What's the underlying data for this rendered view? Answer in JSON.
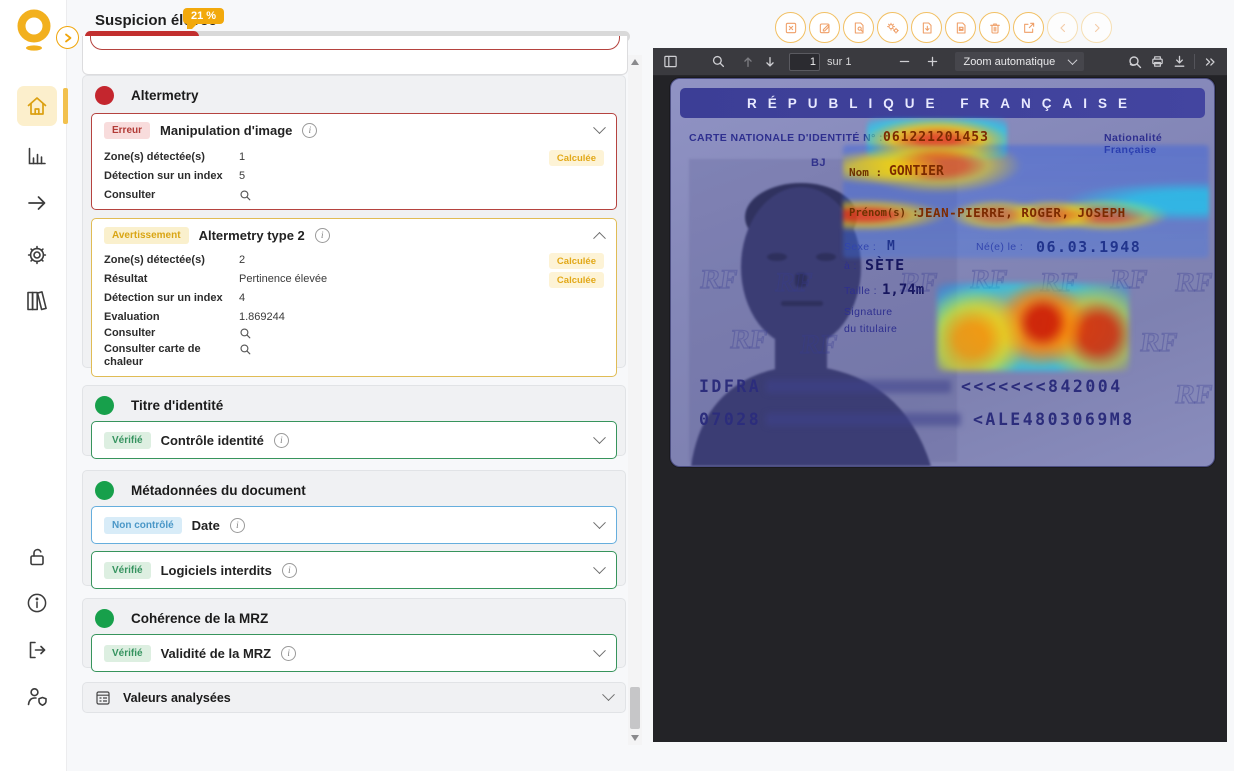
{
  "header": {
    "title": "Suspicion élevée",
    "score_badge": "21 %",
    "progress_percent": 21
  },
  "sidebar": {
    "items": [
      {
        "icon": "home"
      },
      {
        "icon": "bar-chart"
      },
      {
        "icon": "arrow-right"
      },
      {
        "icon": "settings-gear"
      },
      {
        "icon": "library-books"
      },
      {
        "icon": "lock-open"
      },
      {
        "icon": "info-circle"
      },
      {
        "icon": "logout"
      },
      {
        "icon": "user-shield"
      }
    ]
  },
  "top_toolbar": {
    "buttons": [
      {
        "icon": "box-x"
      },
      {
        "icon": "edit-note"
      },
      {
        "icon": "document-preview"
      },
      {
        "icon": "gears"
      },
      {
        "icon": "document-download"
      },
      {
        "icon": "document-pdf"
      },
      {
        "icon": "trash"
      },
      {
        "icon": "open-external"
      },
      {
        "icon": "chevron-left"
      },
      {
        "icon": "chevron-right"
      }
    ]
  },
  "analysis": {
    "groups": [
      {
        "title": "Altermetry",
        "status": "error",
        "checks": [
          {
            "badge": "Erreur",
            "title": "Manipulation d'image",
            "rows": [
              {
                "label": "Zone(s) détectée(s)",
                "value": "1",
                "tag": "Calculée"
              },
              {
                "label": "Détection sur un index",
                "value": "5"
              },
              {
                "label": "Consulter",
                "icon": "magnifier"
              }
            ]
          },
          {
            "badge": "Avertissement",
            "title": "Altermetry type 2",
            "rows": [
              {
                "label": "Zone(s) détectée(s)",
                "value": "2",
                "tag": "Calculée"
              },
              {
                "label": "Résultat",
                "value": "Pertinence élevée",
                "tag": "Calculée"
              },
              {
                "label": "Détection sur un index",
                "value": "4"
              },
              {
                "label": "Evaluation",
                "value": "1.869244"
              },
              {
                "label": "Consulter",
                "icon": "magnifier"
              },
              {
                "label": "Consulter carte de chaleur",
                "icon": "magnifier"
              }
            ]
          }
        ]
      },
      {
        "title": "Titre d'identité",
        "status": "ok",
        "checks": [
          {
            "badge": "Vérifié",
            "title": "Contrôle identité"
          }
        ]
      },
      {
        "title": "Métadonnées du document",
        "status": "ok",
        "checks": [
          {
            "badge": "Non contrôlé",
            "title": "Date"
          },
          {
            "badge": "Vérifié",
            "title": "Logiciels interdits"
          }
        ]
      },
      {
        "title": "Cohérence de la MRZ",
        "status": "ok",
        "checks": [
          {
            "badge": "Vérifié",
            "title": "Validité de la MRZ"
          }
        ]
      }
    ],
    "values_row_label": "Valeurs analysées"
  },
  "pdf_viewer": {
    "page_input": "1",
    "page_count": "sur 1",
    "zoom_select": "Zoom automatique"
  },
  "id_card": {
    "header": "RÉPUBLIQUE FRANÇAISE",
    "cni_label": "CARTE NATIONALE D'IDENTITÉ N° :",
    "cni_number": "061221201453",
    "nationality": "Nationalité Française",
    "bj": "BJ",
    "name_label": "Nom :",
    "name_value": "GONTIER",
    "firstname_label": "Prénom(s) :",
    "firstname_value": "JEAN-PIERRE, ROGER, JOSEPH",
    "sex_label": "Sexe :",
    "sex_value": "M",
    "birth_label": "Né(e) le :",
    "birth_value": "06.03.1948",
    "birthplace_label": "à :",
    "birthplace_value": "SÈTE",
    "height_label": "Taille :",
    "height_value": "1,74m",
    "signature_label_1": "Signature",
    "signature_label_2": "du titulaire",
    "watermark": "RF",
    "mrz_line1_start": "IDFRA",
    "mrz_line1_end": "<<<<<<<842004",
    "mrz_line2_start": "07028",
    "mrz_line2_end": "<ALE4803069M8"
  },
  "colors": {
    "accent": "#F0A50A",
    "error": "#C22F2F",
    "warning": "#E2A818",
    "success": "#17A04B",
    "info": "#66AEDD"
  }
}
